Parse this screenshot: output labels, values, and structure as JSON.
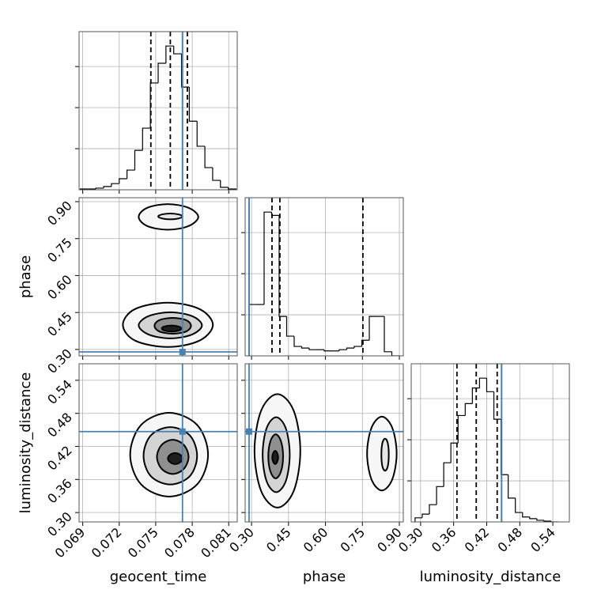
{
  "chart_data": {
    "type": "corner",
    "grid": true,
    "truth_color": "#4682b4",
    "hist_color": "#000000",
    "parameters": [
      {
        "name": "geocent_time",
        "lim": [
          0.0687,
          0.0817
        ],
        "ticks": [
          0.069,
          0.072,
          0.075,
          0.078,
          0.081
        ],
        "truth": 0.0772,
        "quantiles": [
          0.0746,
          0.0762,
          0.0776
        ],
        "bins": [
          0.0688,
          0.06944,
          0.07008,
          0.07072,
          0.07136,
          0.072,
          0.07264,
          0.07328,
          0.07392,
          0.07456,
          0.0752,
          0.07584,
          0.07648,
          0.07712,
          0.07776,
          0.0784,
          0.07904,
          0.07968,
          0.08032,
          0.08096,
          0.0816
        ],
        "counts": [
          20,
          20,
          40,
          80,
          150,
          270,
          480,
          960,
          1500,
          2600,
          3080,
          3500,
          3310,
          2500,
          1670,
          1060,
          540,
          230,
          60,
          20
        ],
        "ylim": [
          0,
          3850
        ],
        "yticks": [
          1000,
          2000,
          3000
        ]
      },
      {
        "name": "phase",
        "lim": [
          0.274,
          0.916
        ],
        "ticks": [
          {
            "value": 0.3,
            "label": "0.30"
          },
          0.45,
          {
            "value": 0.6,
            "label": "0.60"
          },
          0.75,
          {
            "value": 0.9,
            "label": "0.90"
          }
        ],
        "truth": 0.29,
        "quantiles": [
          0.383,
          0.415,
          0.752
        ],
        "bins": [
          0.29,
          0.3205,
          0.351,
          0.3815,
          0.412,
          0.4425,
          0.473,
          0.5035,
          0.534,
          0.5645,
          0.595,
          0.6255,
          0.656,
          0.6865,
          0.717,
          0.7475,
          0.778,
          0.8085,
          0.839,
          0.8695,
          0.9
        ],
        "counts": [
          1250,
          1250,
          3500,
          3420,
          960,
          480,
          230,
          190,
          150,
          150,
          120,
          120,
          150,
          190,
          230,
          380,
          960,
          960,
          100,
          0
        ],
        "ylim": [
          0,
          3850
        ],
        "yticks": [
          1000,
          2000,
          3000
        ]
      },
      {
        "name": "luminosity_distance",
        "lim": [
          0.283,
          0.57
        ],
        "ticks": [
          {
            "value": 0.3,
            "label": "0.30"
          },
          0.36,
          0.42,
          0.48,
          0.54
        ],
        "truth": 0.447,
        "quantiles": [
          0.366,
          0.401,
          0.439
        ],
        "bins": [
          0.29,
          0.303,
          0.316,
          0.329,
          0.342,
          0.355,
          0.368,
          0.381,
          0.394,
          0.407,
          0.42,
          0.433,
          0.446,
          0.459,
          0.472,
          0.485,
          0.498,
          0.511,
          0.524,
          0.537,
          0.55
        ],
        "counts": [
          100,
          190,
          420,
          860,
          1440,
          1920,
          2590,
          2880,
          3260,
          3500,
          3170,
          2500,
          1150,
          580,
          230,
          120,
          80,
          40,
          20,
          0
        ],
        "ylim": [
          0,
          3850
        ],
        "yticks": [
          1000,
          2000,
          3000
        ]
      }
    ],
    "pairs": [
      {
        "contours": [
          {
            "fill": "#f7f7f7",
            "x": [
              0.0797,
              0.0786,
              0.076,
              0.0733,
              0.0723,
              0.0733,
              0.076,
              0.0786
            ],
            "y": [
              0.4,
              0.464,
              0.49,
              0.464,
              0.4,
              0.336,
              0.31,
              0.336
            ]
          },
          {
            "fill": "#d4d4d4",
            "x": [
              0.0788,
              0.078,
              0.0762,
              0.0744,
              0.0736,
              0.0744,
              0.0762,
              0.078
            ],
            "y": [
              0.398,
              0.435,
              0.451,
              0.435,
              0.398,
              0.361,
              0.345,
              0.361
            ]
          },
          {
            "fill": "#8f8f8f",
            "x": [
              0.0779,
              0.0775,
              0.0764,
              0.0753,
              0.0749,
              0.0753,
              0.0764,
              0.0775
            ],
            "y": [
              0.396,
              0.419,
              0.428,
              0.419,
              0.396,
              0.373,
              0.364,
              0.373
            ]
          },
          {
            "fill": "#1e1e1e",
            "x": [
              0.0771,
              0.0769,
              0.0763,
              0.0757,
              0.0755,
              0.0757,
              0.0763,
              0.0769
            ],
            "y": [
              0.385,
              0.393,
              0.397,
              0.393,
              0.385,
              0.377,
              0.373,
              0.377
            ]
          },
          {
            "fill": "#f7f7f7",
            "x": [
              0.0785,
              0.0777,
              0.076,
              0.0743,
              0.0736,
              0.0743,
              0.076,
              0.0777
            ],
            "y": [
              0.838,
              0.875,
              0.89,
              0.875,
              0.838,
              0.801,
              0.786,
              0.801
            ]
          },
          {
            "fill": "#e6e6e6",
            "x": [
              0.0772,
              0.0769,
              0.0762,
              0.0755,
              0.0752,
              0.0755,
              0.0762,
              0.0769
            ],
            "y": [
              0.84,
              0.848,
              0.852,
              0.848,
              0.84,
              0.832,
              0.828,
              0.832
            ]
          }
        ]
      },
      {
        "contours": [
          {
            "fill": "#f7f7f7",
            "x": [
              0.0793,
              0.0784,
              0.0761,
              0.0738,
              0.0729,
              0.0738,
              0.0761,
              0.0784
            ],
            "y": [
              0.405,
              0.459,
              0.481,
              0.459,
              0.405,
              0.351,
              0.329,
              0.351
            ]
          },
          {
            "fill": "#d4d4d4",
            "x": [
              0.0784,
              0.0778,
              0.0762,
              0.0746,
              0.074,
              0.0746,
              0.0762,
              0.0778
            ],
            "y": [
              0.403,
              0.44,
              0.455,
              0.44,
              0.403,
              0.366,
              0.351,
              0.366
            ]
          },
          {
            "fill": "#8f8f8f",
            "x": [
              0.0777,
              0.0773,
              0.0764,
              0.0755,
              0.0751,
              0.0755,
              0.0764,
              0.0773
            ],
            "y": [
              0.401,
              0.423,
              0.432,
              0.423,
              0.401,
              0.379,
              0.37,
              0.379
            ]
          },
          {
            "fill": "#1e1e1e",
            "x": [
              0.0772,
              0.077,
              0.0766,
              0.0762,
              0.076,
              0.0762,
              0.0766,
              0.077
            ],
            "y": [
              0.398,
              0.405,
              0.408,
              0.405,
              0.398,
              0.391,
              0.388,
              0.391
            ]
          }
        ]
      },
      {
        "contours": [
          {
            "fill": "#f7f7f7",
            "x": [
              0.498,
              0.471,
              0.405,
              0.339,
              0.312,
              0.339,
              0.405,
              0.471
            ],
            "y": [
              0.412,
              0.485,
              0.515,
              0.485,
              0.412,
              0.339,
              0.309,
              0.339
            ]
          },
          {
            "fill": "#d4d4d4",
            "x": [
              0.455,
              0.439,
              0.4,
              0.361,
              0.345,
              0.361,
              0.4,
              0.439
            ],
            "y": [
              0.405,
              0.453,
              0.473,
              0.453,
              0.405,
              0.357,
              0.337,
              0.357
            ]
          },
          {
            "fill": "#8f8f8f",
            "x": [
              0.428,
              0.419,
              0.398,
              0.377,
              0.368,
              0.377,
              0.398,
              0.419
            ],
            "y": [
              0.402,
              0.43,
              0.442,
              0.43,
              0.402,
              0.374,
              0.362,
              0.374
            ]
          },
          {
            "fill": "#1e1e1e",
            "x": [
              0.408,
              0.404,
              0.396,
              0.388,
              0.384,
              0.388,
              0.396,
              0.404
            ],
            "y": [
              0.4,
              0.408,
              0.412,
              0.408,
              0.4,
              0.392,
              0.388,
              0.392
            ]
          },
          {
            "fill": "#f7f7f7",
            "x": [
              0.889,
              0.871,
              0.829,
              0.787,
              0.769,
              0.787,
              0.829,
              0.871
            ],
            "y": [
              0.407,
              0.454,
              0.474,
              0.454,
              0.407,
              0.36,
              0.34,
              0.36
            ]
          },
          {
            "fill": "#e6e6e6",
            "x": [
              0.857,
              0.853,
              0.842,
              0.831,
              0.827,
              0.831,
              0.842,
              0.853
            ],
            "y": [
              0.405,
              0.426,
              0.434,
              0.426,
              0.405,
              0.384,
              0.376,
              0.384
            ]
          }
        ]
      }
    ]
  }
}
